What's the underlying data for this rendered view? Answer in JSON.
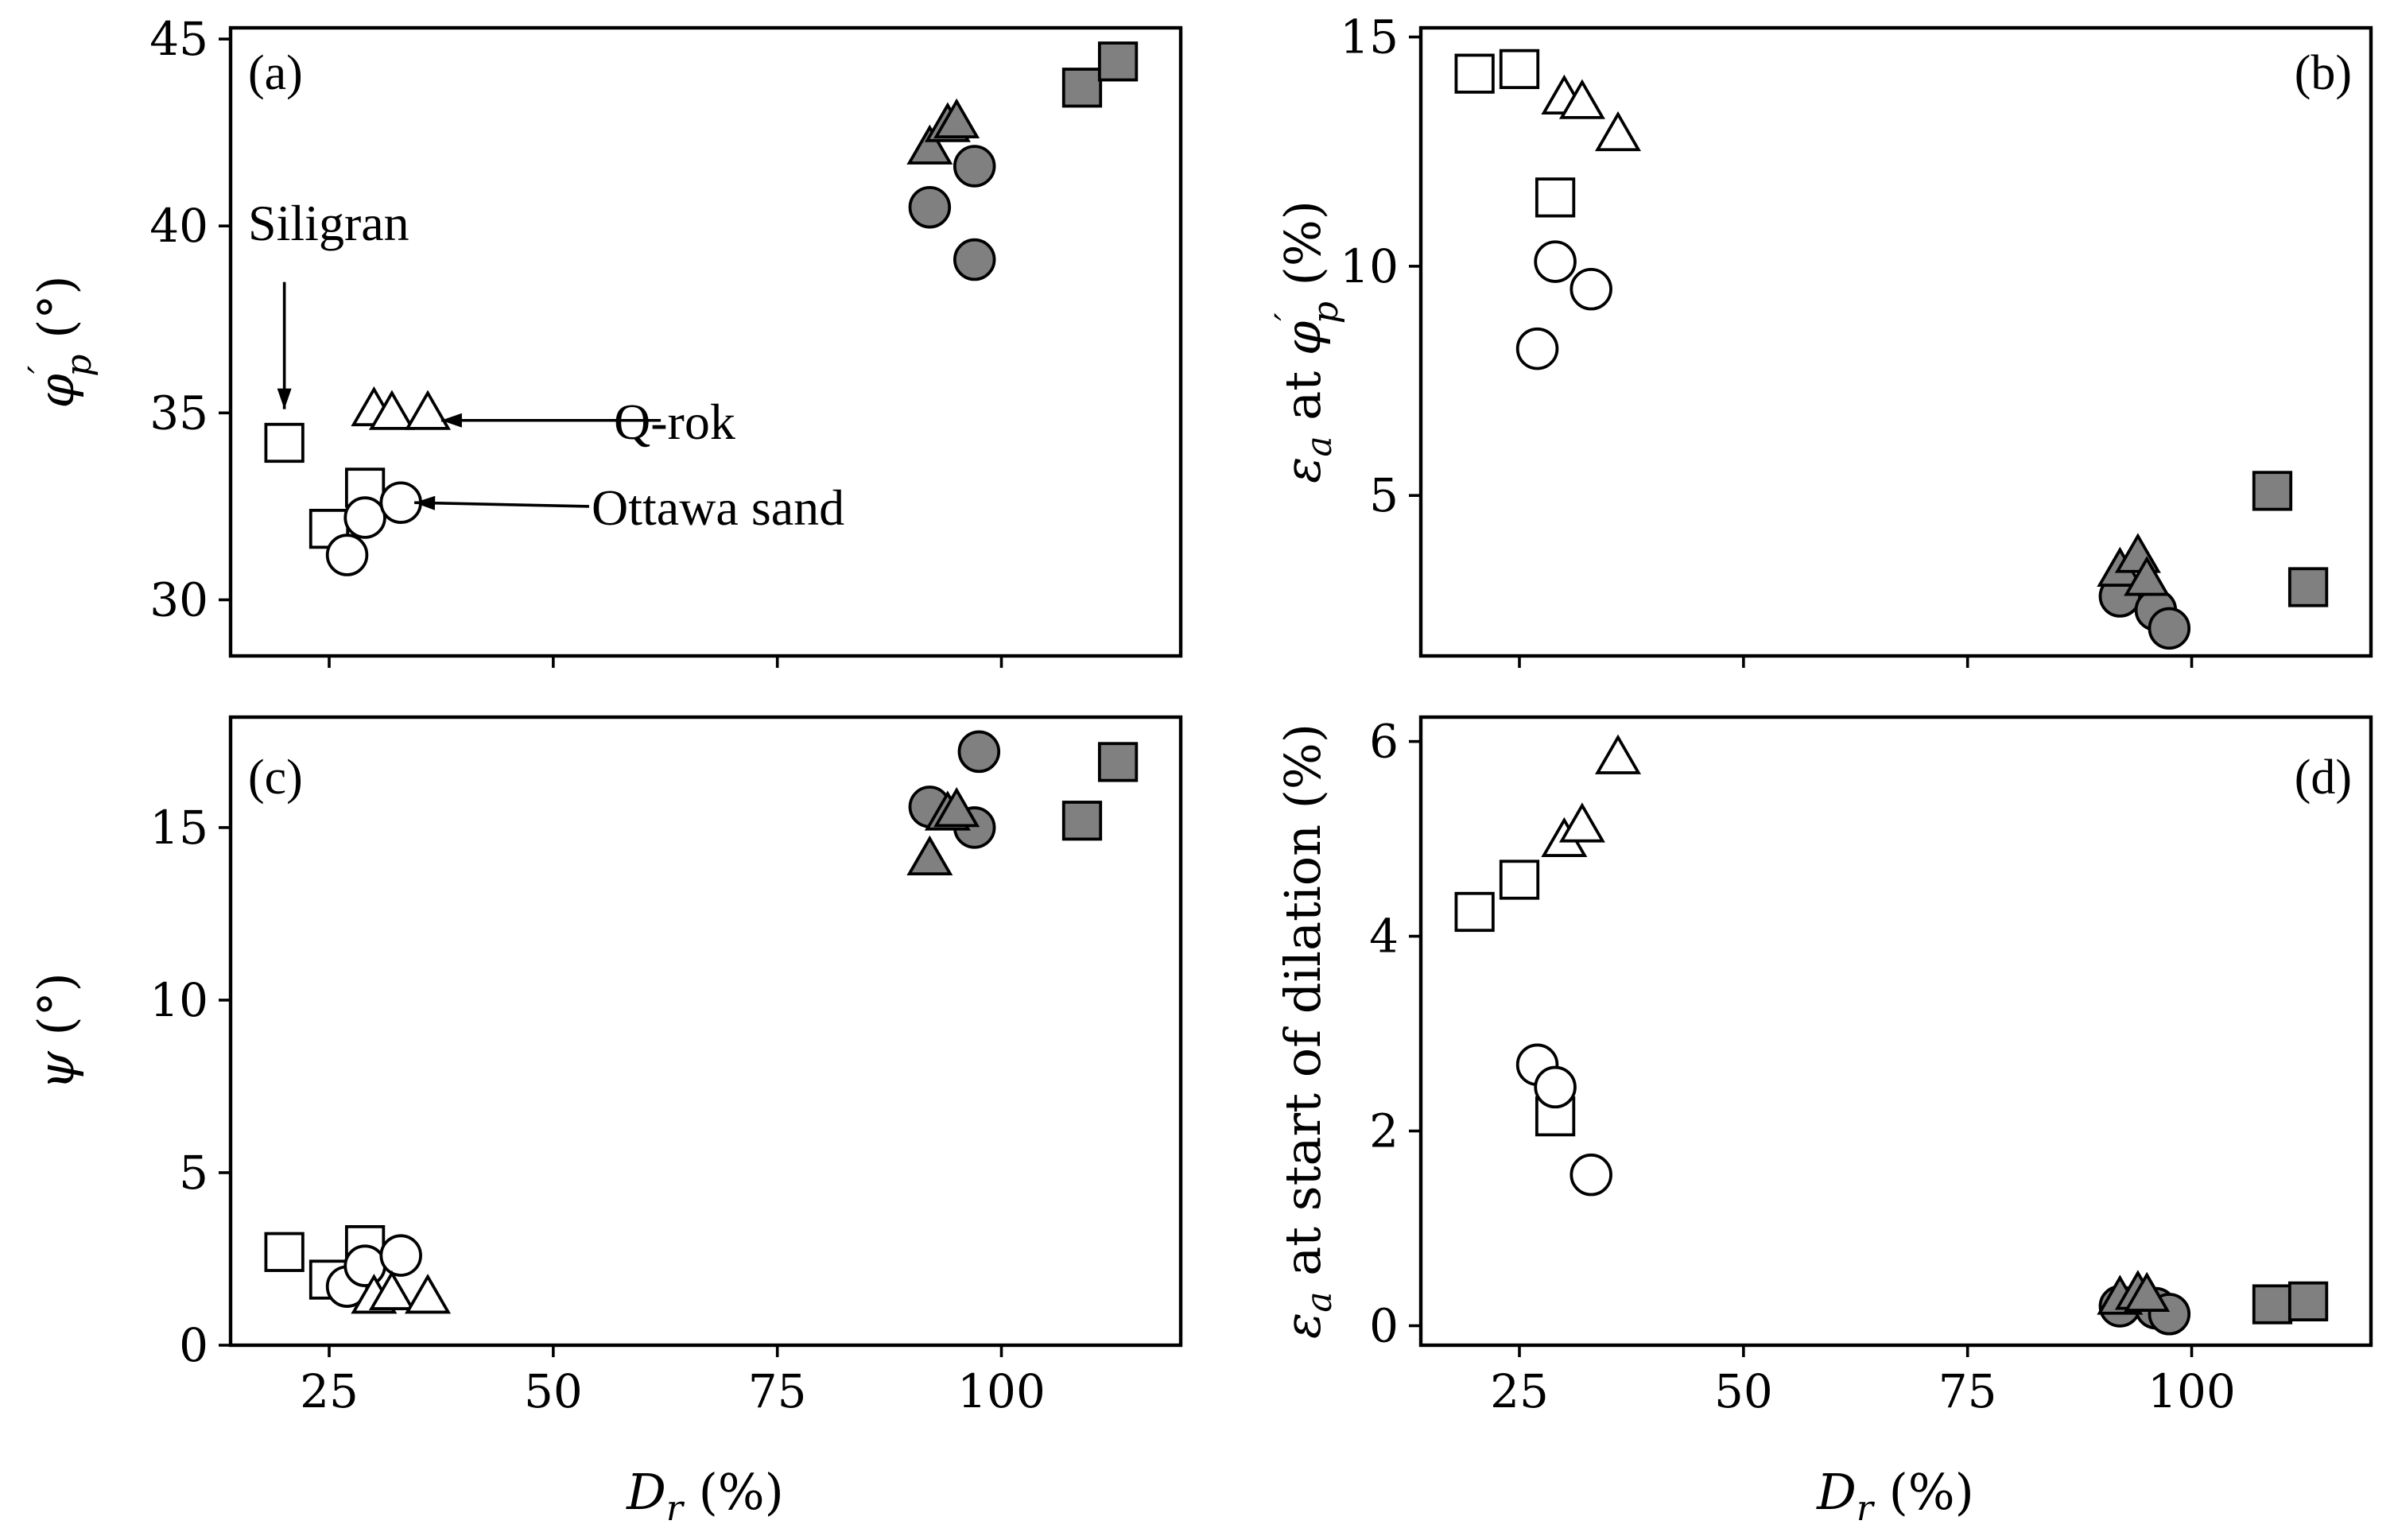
{
  "chart_data": [
    {
      "id": "a",
      "type": "scatter",
      "panel_label": "(a)",
      "xlim": [
        14,
        120
      ],
      "ylim": [
        28.5,
        45.3
      ],
      "xticks": [
        25,
        50,
        75,
        100
      ],
      "show_xticklabels": false,
      "yticks": [
        30,
        35,
        40,
        45
      ],
      "ytick_labels": [
        "30",
        "35",
        "40",
        "45"
      ],
      "ylabel": "φ′p (°)",
      "xlabel": "",
      "series": [
        {
          "marker": "square",
          "fill": "#ffffff",
          "points": [
            [
              20,
              34.2
            ],
            [
              25,
              31.9
            ],
            [
              29,
              33.0
            ]
          ]
        },
        {
          "marker": "circle",
          "fill": "#ffffff",
          "points": [
            [
              27,
              31.2
            ],
            [
              29,
              32.2
            ],
            [
              33,
              32.6
            ]
          ]
        },
        {
          "marker": "triangle",
          "fill": "#ffffff",
          "points": [
            [
              30,
              35.0
            ],
            [
              32,
              34.9
            ],
            [
              36,
              34.9
            ]
          ]
        },
        {
          "marker": "circle",
          "fill": "#808080",
          "points": [
            [
              92,
              40.5
            ],
            [
              97,
              41.6
            ],
            [
              97,
              39.1
            ]
          ]
        },
        {
          "marker": "triangle",
          "fill": "#808080",
          "points": [
            [
              92,
              42.0
            ],
            [
              94,
              42.6
            ],
            [
              95,
              42.7
            ]
          ]
        },
        {
          "marker": "square",
          "fill": "#808080",
          "points": [
            [
              109,
              43.7
            ],
            [
              113,
              44.4
            ]
          ]
        }
      ],
      "annotations": [
        {
          "text": "Siligran",
          "text_at": [
            14,
            40
          ],
          "arrow_from": [
            20,
            38.5
          ],
          "arrow_to": [
            20,
            35.1
          ]
        },
        {
          "text": "Q-rok",
          "text_at": [
            63,
            34.8
          ],
          "arrow_from": [
            62,
            34.8
          ],
          "arrow_to": [
            37.5,
            34.8
          ]
        },
        {
          "text": "Ottawa sand",
          "text_at": [
            55,
            32.5
          ],
          "arrow_from": [
            54,
            32.5
          ],
          "arrow_to": [
            34.5,
            32.6
          ]
        }
      ]
    },
    {
      "id": "b",
      "type": "scatter",
      "panel_label": "(b)",
      "xlim": [
        14,
        120
      ],
      "ylim": [
        1.5,
        15.2
      ],
      "xticks": [
        25,
        50,
        75,
        100
      ],
      "show_xticklabels": false,
      "yticks": [
        5,
        10,
        15
      ],
      "ytick_labels": [
        "5",
        "10",
        "15"
      ],
      "ylabel": "εa at φ′p (%)",
      "xlabel": "",
      "series": [
        {
          "marker": "square",
          "fill": "#ffffff",
          "points": [
            [
              20,
              14.2
            ],
            [
              25,
              14.3
            ],
            [
              29,
              11.5
            ]
          ]
        },
        {
          "marker": "circle",
          "fill": "#ffffff",
          "points": [
            [
              27,
              8.2
            ],
            [
              29,
              10.1
            ],
            [
              33,
              9.5
            ]
          ]
        },
        {
          "marker": "triangle",
          "fill": "#ffffff",
          "points": [
            [
              30,
              13.6
            ],
            [
              32,
              13.5
            ],
            [
              36,
              12.8
            ]
          ]
        },
        {
          "marker": "circle",
          "fill": "#808080",
          "points": [
            [
              92,
              2.8
            ],
            [
              96,
              2.5
            ],
            [
              97.5,
              2.1
            ]
          ]
        },
        {
          "marker": "triangle",
          "fill": "#808080",
          "points": [
            [
              92,
              3.3
            ],
            [
              94,
              3.6
            ],
            [
              95,
              3.1
            ]
          ]
        },
        {
          "marker": "square",
          "fill": "#808080",
          "points": [
            [
              109,
              5.1
            ],
            [
              113,
              3.0
            ]
          ]
        }
      ]
    },
    {
      "id": "c",
      "type": "scatter",
      "panel_label": "(c)",
      "xlim": [
        14,
        120
      ],
      "ylim": [
        0,
        18.2
      ],
      "xticks": [
        25,
        50,
        75,
        100
      ],
      "xtick_labels": [
        "25",
        "50",
        "75",
        "100"
      ],
      "yticks": [
        0,
        5,
        10,
        15
      ],
      "ytick_labels": [
        "0",
        "5",
        "10",
        "15"
      ],
      "ylabel": "ψ (°)",
      "xlabel": "Dr (%)",
      "series": [
        {
          "marker": "square",
          "fill": "#ffffff",
          "points": [
            [
              20,
              2.7
            ],
            [
              25,
              1.9
            ],
            [
              29,
              2.9
            ]
          ]
        },
        {
          "marker": "circle",
          "fill": "#ffffff",
          "points": [
            [
              27,
              1.7
            ],
            [
              29,
              2.3
            ],
            [
              33,
              2.6
            ]
          ]
        },
        {
          "marker": "triangle",
          "fill": "#ffffff",
          "points": [
            [
              30,
              1.3
            ],
            [
              32,
              1.4
            ],
            [
              36,
              1.3
            ]
          ]
        },
        {
          "marker": "circle",
          "fill": "#808080",
          "points": [
            [
              92,
              15.6
            ],
            [
              97,
              15.0
            ],
            [
              97.5,
              17.2
            ]
          ]
        },
        {
          "marker": "triangle",
          "fill": "#808080",
          "points": [
            [
              92,
              14.0
            ],
            [
              94,
              15.3
            ],
            [
              95,
              15.4
            ]
          ]
        },
        {
          "marker": "square",
          "fill": "#808080",
          "points": [
            [
              109,
              15.2
            ],
            [
              113,
              16.9
            ]
          ]
        }
      ]
    },
    {
      "id": "d",
      "type": "scatter",
      "panel_label": "(d)",
      "xlim": [
        14,
        120
      ],
      "ylim": [
        -0.2,
        6.25
      ],
      "xticks": [
        25,
        50,
        75,
        100
      ],
      "xtick_labels": [
        "25",
        "50",
        "75",
        "100"
      ],
      "yticks": [
        0,
        2,
        4,
        6
      ],
      "ytick_labels": [
        "0",
        "2",
        "4",
        "6"
      ],
      "ylabel": "εa at start of dilation (%)",
      "xlabel": "Dr (%)",
      "series": [
        {
          "marker": "square",
          "fill": "#ffffff",
          "points": [
            [
              20,
              4.25
            ],
            [
              25,
              4.58
            ],
            [
              29,
              2.15
            ]
          ]
        },
        {
          "marker": "circle",
          "fill": "#ffffff",
          "points": [
            [
              27,
              2.68
            ],
            [
              29,
              2.45
            ],
            [
              33,
              1.55
            ]
          ]
        },
        {
          "marker": "triangle",
          "fill": "#ffffff",
          "points": [
            [
              30,
              4.95
            ],
            [
              32,
              5.1
            ],
            [
              36,
              5.8
            ]
          ]
        },
        {
          "marker": "circle",
          "fill": "#808080",
          "points": [
            [
              92,
              0.2
            ],
            [
              96,
              0.18
            ],
            [
              97.5,
              0.12
            ]
          ]
        },
        {
          "marker": "triangle",
          "fill": "#808080",
          "points": [
            [
              92,
              0.25
            ],
            [
              94,
              0.3
            ],
            [
              95,
              0.28
            ]
          ]
        },
        {
          "marker": "square",
          "fill": "#808080",
          "points": [
            [
              109,
              0.22
            ],
            [
              113,
              0.25
            ]
          ]
        }
      ]
    }
  ]
}
